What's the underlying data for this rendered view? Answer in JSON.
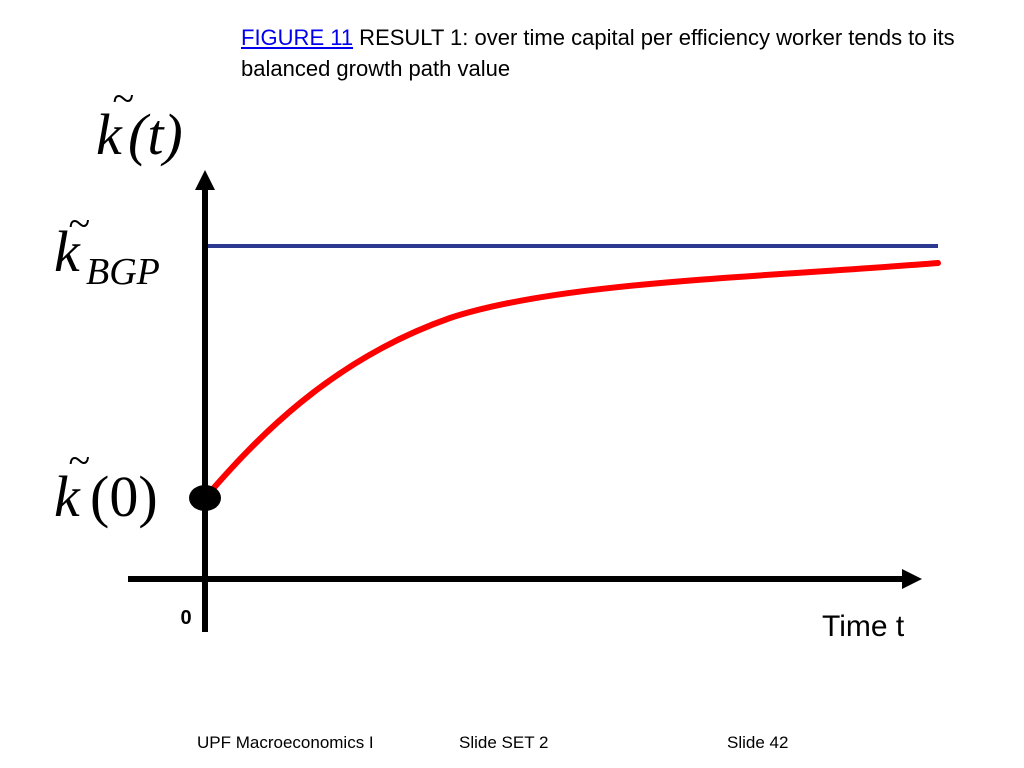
{
  "title": {
    "link_text": "FIGURE 11",
    "text": " RESULT 1: over time capital per efficiency worker tends to its balanced growth path value"
  },
  "diagram": {
    "y_axis_label": {
      "symbol": "k",
      "arg": "(t)"
    },
    "bgp_label": {
      "symbol": "k",
      "subscript": "BGP"
    },
    "initial_label": {
      "symbol": "k",
      "arg": "(0)"
    },
    "tilde": "~",
    "origin_label": "0",
    "x_axis_label": "Time t",
    "colors": {
      "bgp_line": "#2b3990",
      "path_curve": "#ff0000",
      "axes": "#000000"
    }
  },
  "footer": {
    "course": "UPF Macroeconomics I",
    "set": "Slide SET 2",
    "slide": "Slide 42"
  }
}
